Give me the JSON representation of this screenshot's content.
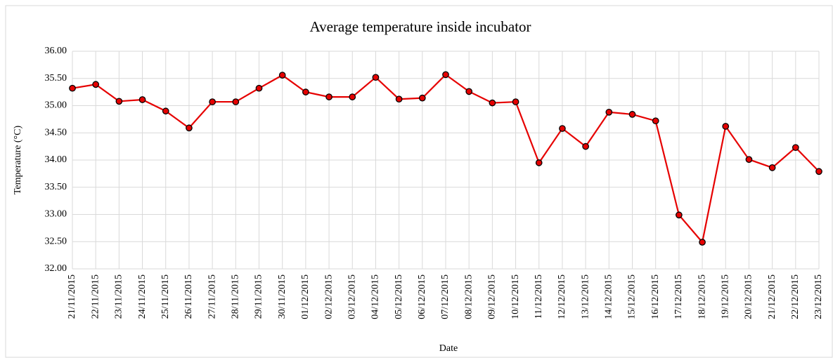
{
  "chart_data": {
    "type": "line",
    "title": "Average temperature inside incubator",
    "x_label": "Date",
    "y_label": "Temperature (°C)",
    "categories": [
      "21/11/2015",
      "22/11/2015",
      "23/11/2015",
      "24/11/2015",
      "25/11/2015",
      "26/11/2015",
      "27/11/2015",
      "28/11/2015",
      "29/11/2015",
      "30/11/2015",
      "01/12/2015",
      "02/12/2015",
      "03/12/2015",
      "04/12/2015",
      "05/12/2015",
      "06/12/2015",
      "07/12/2015",
      "08/12/2015",
      "09/12/2015",
      "10/12/2015",
      "11/12/2015",
      "12/12/2015",
      "13/12/2015",
      "14/12/2015",
      "15/12/2015",
      "16/12/2015",
      "17/12/2015",
      "18/12/2015",
      "19/12/2015",
      "20/12/2015",
      "21/12/2015",
      "22/12/2015",
      "23/12/2015"
    ],
    "values": [
      35.32,
      35.39,
      35.08,
      35.11,
      34.9,
      34.59,
      35.07,
      35.07,
      35.32,
      35.56,
      35.25,
      35.16,
      35.16,
      35.52,
      35.12,
      35.14,
      35.57,
      35.26,
      35.05,
      35.07,
      33.95,
      34.58,
      34.25,
      34.88,
      34.84,
      34.72,
      32.99,
      32.49,
      34.62,
      34.01,
      33.86,
      34.23,
      33.79
    ],
    "color": "#e60000",
    "marker_edge_color": "#000000",
    "ylim": [
      32,
      36
    ],
    "yticks": [
      {
        "value": 32,
        "label": "32.00"
      },
      {
        "value": 32.5,
        "label": "32.50"
      },
      {
        "value": 33,
        "label": "33.00"
      },
      {
        "value": 33.5,
        "label": "33.50"
      },
      {
        "value": 34,
        "label": "34.00"
      },
      {
        "value": 34.5,
        "label": "34.50"
      },
      {
        "value": 35,
        "label": "35.00"
      },
      {
        "value": 35.5,
        "label": "35.50"
      },
      {
        "value": 36,
        "label": "36.00"
      }
    ],
    "grid": true
  }
}
